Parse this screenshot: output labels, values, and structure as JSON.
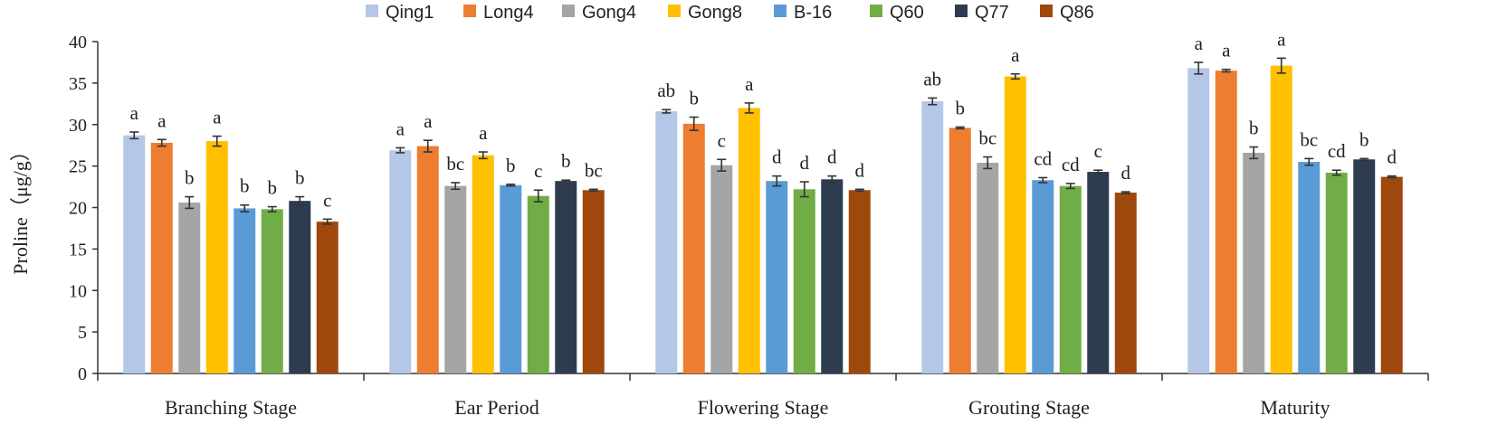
{
  "chart_data": {
    "type": "bar",
    "title": "",
    "xlabel": "",
    "ylabel": "Proline（μg/g）",
    "ylim": [
      0,
      40
    ],
    "yticks": [
      0,
      5,
      10,
      15,
      20,
      25,
      30,
      35,
      40
    ],
    "grid": false,
    "legend_position": "top",
    "categories": [
      "Branching Stage",
      "Ear Period",
      "Flowering Stage",
      "Grouting Stage",
      "Maturity"
    ],
    "series": [
      {
        "name": "Qing1",
        "color": "#b4c7e7",
        "values": [
          28.7,
          26.9,
          31.6,
          32.8,
          36.8
        ],
        "errors": [
          0.4,
          0.3,
          0.2,
          0.4,
          0.7
        ],
        "letters": [
          "a",
          "a",
          "ab",
          "ab",
          "a"
        ]
      },
      {
        "name": "Long4",
        "color": "#ed7d31",
        "values": [
          27.8,
          27.4,
          30.1,
          29.6,
          36.5
        ],
        "errors": [
          0.4,
          0.7,
          0.8,
          0.1,
          0.15
        ],
        "letters": [
          "a",
          "a",
          "b",
          "b",
          "a"
        ]
      },
      {
        "name": "Gong4",
        "color": "#a5a5a5",
        "values": [
          20.6,
          22.6,
          25.1,
          25.4,
          26.6
        ],
        "errors": [
          0.7,
          0.4,
          0.7,
          0.7,
          0.7
        ],
        "letters": [
          "b",
          "bc",
          "c",
          "bc",
          "b"
        ]
      },
      {
        "name": "Gong8",
        "color": "#ffc000",
        "values": [
          28.0,
          26.3,
          32.0,
          35.8,
          37.1
        ],
        "errors": [
          0.6,
          0.4,
          0.6,
          0.3,
          0.9
        ],
        "letters": [
          "a",
          "a",
          "a",
          "a",
          "a"
        ]
      },
      {
        "name": "B-16",
        "color": "#5b9bd5",
        "values": [
          19.9,
          22.7,
          23.2,
          23.3,
          25.5
        ],
        "errors": [
          0.4,
          0.1,
          0.6,
          0.3,
          0.4
        ],
        "letters": [
          "b",
          "b",
          "d",
          "cd",
          "bc"
        ]
      },
      {
        "name": "Q60",
        "color": "#70ad47",
        "values": [
          19.8,
          21.4,
          22.2,
          22.6,
          24.2
        ],
        "errors": [
          0.3,
          0.7,
          0.9,
          0.3,
          0.3
        ],
        "letters": [
          "b",
          "c",
          "d",
          "cd",
          "cd"
        ]
      },
      {
        "name": "Q77",
        "color": "#2e3c50",
        "values": [
          20.8,
          23.2,
          23.4,
          24.3,
          25.8
        ],
        "errors": [
          0.5,
          0.1,
          0.4,
          0.2,
          0.1
        ],
        "letters": [
          "b",
          "b",
          "d",
          "c",
          "b"
        ]
      },
      {
        "name": "Q86",
        "color": "#9e480e",
        "values": [
          18.3,
          22.1,
          22.1,
          21.8,
          23.7
        ],
        "errors": [
          0.3,
          0.1,
          0.1,
          0.1,
          0.1
        ],
        "letters": [
          "c",
          "bc",
          "d",
          "d",
          "d"
        ]
      }
    ]
  }
}
